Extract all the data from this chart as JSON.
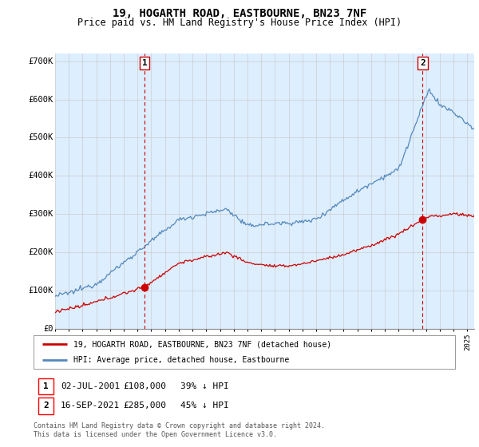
{
  "title": "19, HOGARTH ROAD, EASTBOURNE, BN23 7NF",
  "subtitle": "Price paid vs. HM Land Registry's House Price Index (HPI)",
  "ylim": [
    0,
    720000
  ],
  "yticks": [
    0,
    100000,
    200000,
    300000,
    400000,
    500000,
    600000,
    700000
  ],
  "ytick_labels": [
    "£0",
    "£100K",
    "£200K",
    "£300K",
    "£400K",
    "£500K",
    "£600K",
    "£700K"
  ],
  "legend_label_red": "19, HOGARTH ROAD, EASTBOURNE, BN23 7NF (detached house)",
  "legend_label_blue": "HPI: Average price, detached house, Eastbourne",
  "transaction1_date": "02-JUL-2001",
  "transaction1_price": "£108,000",
  "transaction1_hpi": "39% ↓ HPI",
  "transaction2_date": "16-SEP-2021",
  "transaction2_price": "£285,000",
  "transaction2_hpi": "45% ↓ HPI",
  "footnote": "Contains HM Land Registry data © Crown copyright and database right 2024.\nThis data is licensed under the Open Government Licence v3.0.",
  "red_color": "#cc0000",
  "blue_color": "#5588bb",
  "fill_color": "#ddeeff",
  "vline_color": "#cc0000",
  "grid_color": "#cccccc",
  "bg_color": "#ffffff",
  "marker1_x": 2001.5,
  "marker1_y": 108000,
  "marker2_x": 2021.75,
  "marker2_y": 285000,
  "xlim_left": 1995.0,
  "xlim_right": 2025.5
}
